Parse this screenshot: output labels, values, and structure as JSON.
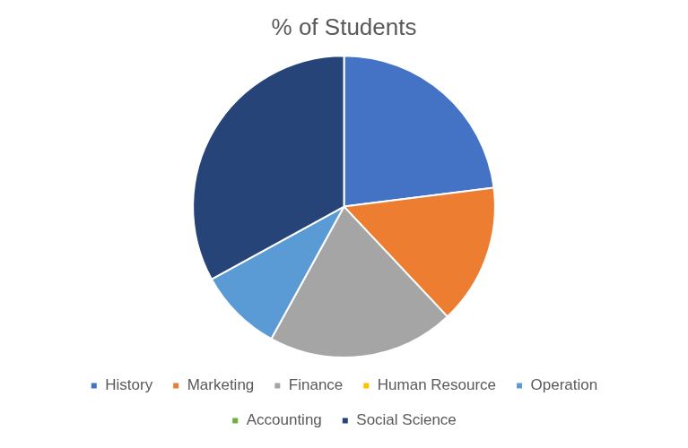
{
  "chart_data": {
    "type": "pie",
    "title": "% of Students",
    "categories": [
      "History",
      "Marketing",
      "Finance",
      "Human Resource",
      "Operation",
      "Accounting",
      "Social Science"
    ],
    "values": [
      23,
      15,
      20,
      0,
      9,
      0,
      33
    ],
    "colors": [
      "#4472c4",
      "#ed7d31",
      "#a5a5a5",
      "#ffc000",
      "#5b9bd5",
      "#70ad47",
      "#264478"
    ],
    "legend": "bottom"
  }
}
